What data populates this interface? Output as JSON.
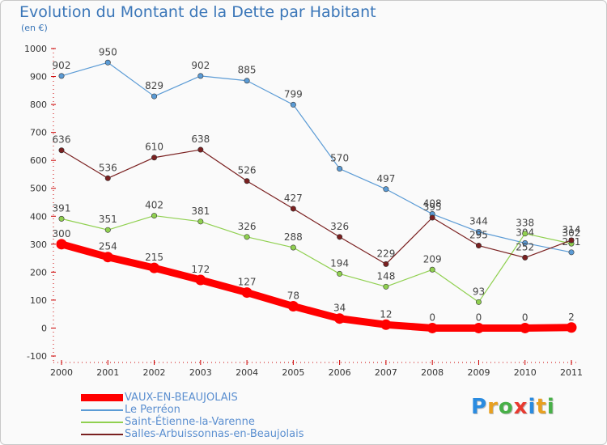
{
  "title": "Evolution du Montant de la Dette par Habitant",
  "unit_label": "(en €)",
  "brand": {
    "letters": [
      "P",
      "r",
      "o",
      "x",
      "i",
      "t",
      "i"
    ],
    "colors": [
      "#2a8be0",
      "#e8a020",
      "#48b048",
      "#e83a30",
      "#2a8be0",
      "#e8a020",
      "#48b048"
    ]
  },
  "chart_data": {
    "type": "line",
    "title": "Evolution du Montant de la Dette par Habitant",
    "ylabel": "(en €)",
    "xlabel": "",
    "x": [
      "2000",
      "2001",
      "2002",
      "2003",
      "2004",
      "2005",
      "2006",
      "2007",
      "2008",
      "2009",
      "2010",
      "2011"
    ],
    "ylim": [
      -100,
      1000
    ],
    "yticks": [
      "1000",
      "900",
      "800",
      "700",
      "600",
      "500",
      "400",
      "300",
      "200",
      "100",
      "0",
      "-100"
    ],
    "grid": false,
    "legend_position": "bottom",
    "series": [
      {
        "name": "VAUX-EN-BEAUJOLAIS",
        "color": "#ff0000",
        "emphasis": true,
        "values": [
          300,
          254,
          215,
          172,
          127,
          78,
          34,
          12,
          0,
          0,
          0,
          2
        ],
        "labels": [
          "300",
          "254",
          "215",
          "172",
          "127",
          "78",
          "34",
          "12",
          "0",
          "0",
          "0",
          "2"
        ]
      },
      {
        "name": "Le Perréon",
        "color": "#5b9bd5",
        "emphasis": false,
        "values": [
          902,
          950,
          829,
          902,
          885,
          799,
          570,
          497,
          408,
          344,
          304,
          271
        ],
        "labels": [
          "902",
          "950",
          "829",
          "902",
          "885",
          "799",
          "570",
          "497",
          "408",
          "344",
          "304",
          "271"
        ]
      },
      {
        "name": "Saint-Étienne-la-Varenne",
        "color": "#90d050",
        "emphasis": false,
        "values": [
          391,
          351,
          402,
          381,
          326,
          288,
          194,
          148,
          209,
          93,
          338,
          302
        ],
        "labels": [
          "391",
          "351",
          "402",
          "381",
          "326",
          "288",
          "194",
          "148",
          "209",
          "93",
          "338",
          "302"
        ]
      },
      {
        "name": "Salles-Arbuissonnas-en-Beaujolais",
        "color": "#7a2020",
        "emphasis": false,
        "values": [
          636,
          536,
          610,
          638,
          526,
          427,
          326,
          229,
          395,
          295,
          252,
          314
        ],
        "labels": [
          "636",
          "536",
          "610",
          "638",
          "526",
          "427",
          "326",
          "229",
          "395",
          "295",
          "252",
          "314"
        ]
      }
    ]
  }
}
